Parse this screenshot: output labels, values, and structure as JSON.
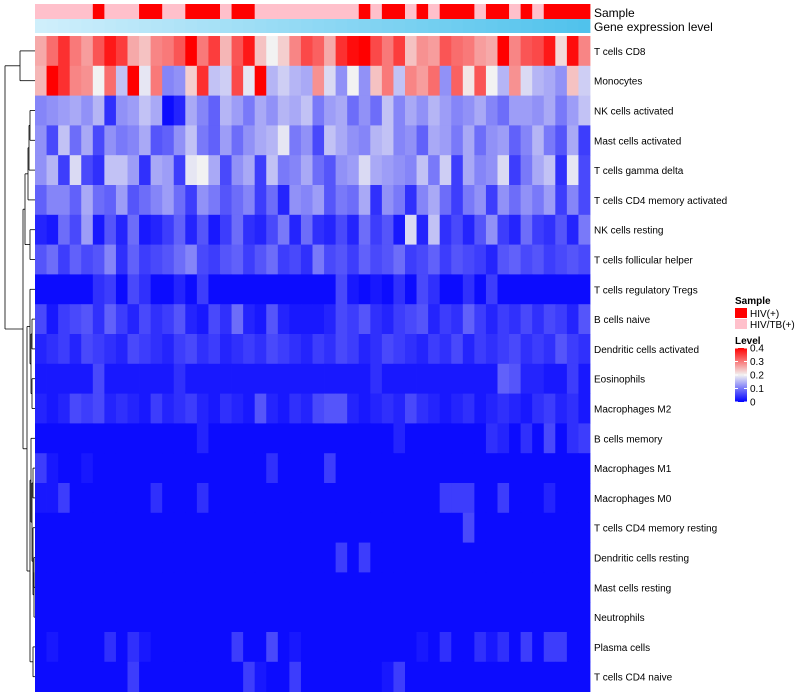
{
  "chart_data": {
    "type": "heatmap",
    "title": "",
    "annotations": {
      "sample_label": "Sample",
      "expression_label": "Gene expression level",
      "sample_row": [
        "HIV/TB(+)",
        "HIV/TB(+)",
        "HIV/TB(+)",
        "HIV/TB(+)",
        "HIV/TB(+)",
        "HIV(+)",
        "HIV/TB(+)",
        "HIV/TB(+)",
        "HIV/TB(+)",
        "HIV(+)",
        "HIV(+)",
        "HIV/TB(+)",
        "HIV/TB(+)",
        "HIV(+)",
        "HIV(+)",
        "HIV(+)",
        "HIV/TB(+)",
        "HIV(+)",
        "HIV(+)",
        "HIV/TB(+)",
        "HIV/TB(+)",
        "HIV/TB(+)",
        "HIV/TB(+)",
        "HIV/TB(+)",
        "HIV/TB(+)",
        "HIV/TB(+)",
        "HIV/TB(+)",
        "HIV/TB(+)",
        "HIV(+)",
        "HIV/TB(+)",
        "HIV(+)",
        "HIV(+)",
        "HIV/TB(+)",
        "HIV(+)",
        "HIV/TB(+)",
        "HIV(+)",
        "HIV(+)",
        "HIV(+)",
        "HIV/TB(+)",
        "HIV(+)",
        "HIV(+)",
        "HIV/TB(+)",
        "HIV(+)",
        "HIV/TB(+)",
        "HIV(+)",
        "HIV(+)",
        "HIV(+)",
        "HIV(+)"
      ],
      "expression_row": [
        0.05,
        0.07,
        0.09,
        0.11,
        0.13,
        0.15,
        0.17,
        0.19,
        0.21,
        0.23,
        0.25,
        0.27,
        0.29,
        0.31,
        0.33,
        0.35,
        0.37,
        0.39,
        0.41,
        0.43,
        0.45,
        0.47,
        0.49,
        0.51,
        0.53,
        0.55,
        0.57,
        0.59,
        0.61,
        0.63,
        0.65,
        0.67,
        0.69,
        0.71,
        0.73,
        0.75,
        0.77,
        0.79,
        0.81,
        0.83,
        0.85,
        0.87,
        0.89,
        0.91,
        0.93,
        0.95,
        0.97,
        0.99
      ]
    },
    "rows": [
      "T cells CD8",
      "Monocytes",
      "NK cells activated",
      "Mast cells activated",
      "T cells gamma delta",
      "T cells CD4 memory activated",
      "NK cells resting",
      "T cells follicular helper",
      "T cells regulatory  Tregs",
      "B cells naive",
      "Dendritic cells activated",
      "Eosinophils",
      "Macrophages M2",
      "B cells memory",
      "Macrophages M1",
      "Macrophages M0",
      "T cells CD4 memory resting",
      "Dendritic cells resting",
      "Mast cells resting",
      "Neutrophils",
      "Plasma cells",
      "T cells CD4 naive"
    ],
    "values": [
      [
        0.26,
        0.31,
        0.36,
        0.3,
        0.27,
        0.33,
        0.38,
        0.35,
        0.26,
        0.24,
        0.29,
        0.3,
        0.33,
        0.4,
        0.3,
        0.35,
        0.25,
        0.33,
        0.38,
        0.24,
        0.2,
        0.23,
        0.29,
        0.34,
        0.32,
        0.26,
        0.36,
        0.39,
        0.4,
        0.34,
        0.3,
        0.35,
        0.24,
        0.28,
        0.27,
        0.33,
        0.31,
        0.3,
        0.27,
        0.26,
        0.4,
        0.29,
        0.33,
        0.34,
        0.38,
        0.22,
        0.39,
        0.29
      ],
      [
        0.25,
        0.4,
        0.36,
        0.29,
        0.28,
        0.2,
        0.31,
        0.16,
        0.4,
        0.19,
        0.3,
        0.11,
        0.12,
        0.23,
        0.36,
        0.16,
        0.17,
        0.34,
        0.19,
        0.4,
        0.15,
        0.17,
        0.15,
        0.14,
        0.28,
        0.18,
        0.12,
        0.2,
        0.12,
        0.24,
        0.3,
        0.16,
        0.29,
        0.27,
        0.31,
        0.12,
        0.32,
        0.21,
        0.33,
        0.2,
        0.15,
        0.28,
        0.18,
        0.15,
        0.14,
        0.12,
        0.24,
        0.17
      ],
      [
        0.11,
        0.12,
        0.13,
        0.14,
        0.12,
        0.15,
        0.04,
        0.12,
        0.13,
        0.16,
        0.14,
        0.01,
        0.03,
        0.14,
        0.11,
        0.08,
        0.15,
        0.13,
        0.1,
        0.14,
        0.12,
        0.15,
        0.14,
        0.16,
        0.1,
        0.13,
        0.14,
        0.09,
        0.12,
        0.09,
        0.16,
        0.11,
        0.14,
        0.12,
        0.15,
        0.13,
        0.11,
        0.12,
        0.14,
        0.11,
        0.09,
        0.13,
        0.13,
        0.12,
        0.14,
        0.1,
        0.13,
        0.16
      ],
      [
        0.12,
        0.06,
        0.16,
        0.09,
        0.14,
        0.06,
        0.12,
        0.1,
        0.11,
        0.14,
        0.07,
        0.08,
        0.12,
        0.16,
        0.1,
        0.08,
        0.13,
        0.09,
        0.12,
        0.14,
        0.15,
        0.19,
        0.1,
        0.12,
        0.06,
        0.16,
        0.14,
        0.12,
        0.11,
        0.15,
        0.16,
        0.11,
        0.12,
        0.08,
        0.14,
        0.13,
        0.1,
        0.14,
        0.09,
        0.12,
        0.13,
        0.08,
        0.11,
        0.15,
        0.1,
        0.07,
        0.14,
        0.05
      ],
      [
        0.12,
        0.15,
        0.05,
        0.18,
        0.06,
        0.04,
        0.16,
        0.16,
        0.13,
        0.04,
        0.14,
        0.13,
        0.05,
        0.19,
        0.2,
        0.14,
        0.06,
        0.12,
        0.14,
        0.05,
        0.16,
        0.1,
        0.11,
        0.14,
        0.09,
        0.07,
        0.12,
        0.13,
        0.18,
        0.14,
        0.13,
        0.12,
        0.11,
        0.16,
        0.1,
        0.17,
        0.05,
        0.14,
        0.11,
        0.12,
        0.18,
        0.05,
        0.1,
        0.14,
        0.16,
        0.04,
        0.19,
        0.06
      ],
      [
        0.08,
        0.11,
        0.11,
        0.08,
        0.14,
        0.09,
        0.08,
        0.13,
        0.07,
        0.09,
        0.11,
        0.13,
        0.09,
        0.05,
        0.12,
        0.1,
        0.07,
        0.09,
        0.11,
        0.05,
        0.09,
        0.03,
        0.12,
        0.11,
        0.13,
        0.07,
        0.1,
        0.09,
        0.14,
        0.04,
        0.12,
        0.1,
        0.04,
        0.11,
        0.14,
        0.09,
        0.05,
        0.1,
        0.12,
        0.05,
        0.12,
        0.09,
        0.12,
        0.1,
        0.13,
        0.05,
        0.11,
        0.06
      ],
      [
        0.03,
        0.02,
        0.09,
        0.06,
        0.13,
        0.02,
        0.07,
        0.03,
        0.09,
        0.02,
        0.03,
        0.05,
        0.08,
        0.03,
        0.07,
        0.02,
        0.05,
        0.09,
        0.04,
        0.03,
        0.06,
        0.1,
        0.03,
        0.09,
        0.04,
        0.03,
        0.06,
        0.03,
        0.09,
        0.05,
        0.07,
        0.02,
        0.18,
        0.03,
        0.16,
        0.04,
        0.06,
        0.03,
        0.07,
        0.12,
        0.05,
        0.03,
        0.09,
        0.05,
        0.04,
        0.07,
        0.03,
        0.1
      ],
      [
        0.07,
        0.09,
        0.05,
        0.08,
        0.06,
        0.07,
        0.11,
        0.04,
        0.08,
        0.05,
        0.06,
        0.07,
        0.09,
        0.11,
        0.06,
        0.05,
        0.07,
        0.08,
        0.05,
        0.07,
        0.09,
        0.05,
        0.06,
        0.04,
        0.1,
        0.06,
        0.07,
        0.05,
        0.08,
        0.06,
        0.07,
        0.09,
        0.05,
        0.06,
        0.08,
        0.05,
        0.07,
        0.06,
        0.05,
        0.03,
        0.07,
        0.08,
        0.06,
        0.07,
        0.05,
        0.06,
        0.07,
        0.06
      ],
      [
        0.01,
        0.01,
        0.01,
        0.01,
        0.01,
        0.04,
        0.05,
        0.01,
        0.06,
        0.04,
        0.01,
        0.01,
        0.03,
        0.01,
        0.05,
        0.01,
        0.01,
        0.01,
        0.01,
        0.01,
        0.01,
        0.01,
        0.01,
        0.01,
        0.01,
        0.01,
        0.06,
        0.02,
        0.01,
        0.02,
        0.01,
        0.04,
        0.01,
        0.06,
        0.04,
        0.01,
        0.01,
        0.04,
        0.01,
        0.05,
        0.01,
        0.01,
        0.01,
        0.01,
        0.01,
        0.01,
        0.01,
        0.01
      ],
      [
        0.06,
        0.02,
        0.05,
        0.06,
        0.07,
        0.04,
        0.08,
        0.05,
        0.03,
        0.06,
        0.04,
        0.05,
        0.07,
        0.03,
        0.02,
        0.06,
        0.04,
        0.09,
        0.03,
        0.02,
        0.07,
        0.03,
        0.02,
        0.02,
        0.02,
        0.03,
        0.06,
        0.05,
        0.07,
        0.04,
        0.03,
        0.05,
        0.06,
        0.07,
        0.03,
        0.05,
        0.04,
        0.08,
        0.05,
        0.03,
        0.05,
        0.04,
        0.06,
        0.04,
        0.06,
        0.05,
        0.03,
        0.07
      ],
      [
        0.03,
        0.04,
        0.05,
        0.03,
        0.06,
        0.05,
        0.04,
        0.03,
        0.06,
        0.05,
        0.04,
        0.03,
        0.05,
        0.06,
        0.04,
        0.05,
        0.03,
        0.04,
        0.05,
        0.04,
        0.06,
        0.05,
        0.04,
        0.03,
        0.05,
        0.04,
        0.06,
        0.05,
        0.03,
        0.04,
        0.06,
        0.05,
        0.04,
        0.03,
        0.05,
        0.04,
        0.06,
        0.03,
        0.05,
        0.04,
        0.05,
        0.06,
        0.04,
        0.05,
        0.04,
        0.07,
        0.05,
        0.04
      ],
      [
        0.02,
        0.02,
        0.02,
        0.02,
        0.02,
        0.06,
        0.02,
        0.02,
        0.02,
        0.02,
        0.02,
        0.02,
        0.04,
        0.02,
        0.02,
        0.02,
        0.02,
        0.02,
        0.02,
        0.02,
        0.02,
        0.02,
        0.02,
        0.02,
        0.02,
        0.02,
        0.02,
        0.02,
        0.02,
        0.04,
        0.02,
        0.02,
        0.02,
        0.02,
        0.02,
        0.02,
        0.02,
        0.02,
        0.02,
        0.02,
        0.08,
        0.07,
        0.03,
        0.03,
        0.02,
        0.02,
        0.05,
        0.02
      ],
      [
        0.03,
        0.02,
        0.03,
        0.06,
        0.05,
        0.06,
        0.03,
        0.04,
        0.03,
        0.02,
        0.05,
        0.03,
        0.04,
        0.05,
        0.03,
        0.02,
        0.04,
        0.03,
        0.02,
        0.07,
        0.03,
        0.02,
        0.04,
        0.03,
        0.06,
        0.07,
        0.07,
        0.03,
        0.02,
        0.03,
        0.04,
        0.03,
        0.06,
        0.04,
        0.03,
        0.02,
        0.03,
        0.04,
        0.02,
        0.03,
        0.04,
        0.03,
        0.02,
        0.04,
        0.05,
        0.03,
        0.04,
        0.02
      ],
      [
        0.01,
        0.01,
        0.01,
        0.01,
        0.01,
        0.01,
        0.01,
        0.01,
        0.01,
        0.01,
        0.01,
        0.01,
        0.01,
        0.01,
        0.03,
        0.01,
        0.01,
        0.01,
        0.01,
        0.01,
        0.01,
        0.01,
        0.01,
        0.01,
        0.01,
        0.01,
        0.01,
        0.01,
        0.01,
        0.01,
        0.01,
        0.03,
        0.01,
        0.01,
        0.01,
        0.01,
        0.01,
        0.01,
        0.01,
        0.04,
        0.03,
        0.01,
        0.04,
        0.01,
        0.06,
        0.01,
        0.04,
        0.05
      ],
      [
        0.05,
        0.02,
        0.01,
        0.01,
        0.02,
        0.01,
        0.01,
        0.01,
        0.01,
        0.01,
        0.01,
        0.01,
        0.01,
        0.01,
        0.01,
        0.01,
        0.01,
        0.01,
        0.01,
        0.01,
        0.04,
        0.01,
        0.01,
        0.01,
        0.01,
        0.05,
        0.01,
        0.01,
        0.01,
        0.01,
        0.01,
        0.01,
        0.01,
        0.01,
        0.01,
        0.01,
        0.01,
        0.01,
        0.01,
        0.01,
        0.01,
        0.01,
        0.01,
        0.01,
        0.01,
        0.01,
        0.01,
        0.01
      ],
      [
        0.02,
        0.02,
        0.05,
        0.01,
        0.01,
        0.01,
        0.01,
        0.01,
        0.01,
        0.01,
        0.04,
        0.01,
        0.01,
        0.01,
        0.04,
        0.01,
        0.01,
        0.01,
        0.01,
        0.01,
        0.01,
        0.01,
        0.01,
        0.01,
        0.01,
        0.01,
        0.01,
        0.01,
        0.01,
        0.01,
        0.01,
        0.01,
        0.01,
        0.01,
        0.01,
        0.05,
        0.05,
        0.05,
        0.01,
        0.01,
        0.05,
        0.01,
        0.01,
        0.01,
        0.03,
        0.01,
        0.01,
        0.01
      ],
      [
        0.01,
        0.01,
        0.01,
        0.01,
        0.01,
        0.01,
        0.01,
        0.01,
        0.01,
        0.01,
        0.01,
        0.01,
        0.01,
        0.01,
        0.01,
        0.01,
        0.01,
        0.01,
        0.01,
        0.01,
        0.01,
        0.01,
        0.01,
        0.01,
        0.01,
        0.01,
        0.01,
        0.01,
        0.01,
        0.01,
        0.01,
        0.01,
        0.01,
        0.01,
        0.01,
        0.01,
        0.01,
        0.06,
        0.01,
        0.01,
        0.01,
        0.01,
        0.01,
        0.01,
        0.01,
        0.01,
        0.01,
        0.01
      ],
      [
        0.01,
        0.01,
        0.01,
        0.01,
        0.01,
        0.01,
        0.01,
        0.01,
        0.01,
        0.01,
        0.01,
        0.01,
        0.01,
        0.01,
        0.01,
        0.01,
        0.01,
        0.01,
        0.01,
        0.01,
        0.01,
        0.01,
        0.01,
        0.01,
        0.01,
        0.01,
        0.05,
        0.01,
        0.05,
        0.01,
        0.01,
        0.01,
        0.01,
        0.01,
        0.01,
        0.01,
        0.01,
        0.01,
        0.01,
        0.01,
        0.01,
        0.01,
        0.01,
        0.01,
        0.01,
        0.01,
        0.01,
        0.01
      ],
      [
        0.01,
        0.01,
        0.01,
        0.01,
        0.01,
        0.01,
        0.01,
        0.01,
        0.01,
        0.01,
        0.01,
        0.01,
        0.01,
        0.01,
        0.01,
        0.01,
        0.01,
        0.01,
        0.01,
        0.01,
        0.01,
        0.01,
        0.01,
        0.01,
        0.01,
        0.01,
        0.01,
        0.01,
        0.01,
        0.01,
        0.01,
        0.01,
        0.01,
        0.01,
        0.01,
        0.01,
        0.01,
        0.01,
        0.01,
        0.01,
        0.01,
        0.01,
        0.01,
        0.01,
        0.01,
        0.01,
        0.01,
        0.01
      ],
      [
        0.01,
        0.01,
        0.01,
        0.01,
        0.01,
        0.01,
        0.01,
        0.01,
        0.01,
        0.01,
        0.01,
        0.01,
        0.01,
        0.01,
        0.01,
        0.01,
        0.01,
        0.01,
        0.01,
        0.01,
        0.01,
        0.01,
        0.01,
        0.01,
        0.01,
        0.01,
        0.01,
        0.01,
        0.01,
        0.01,
        0.01,
        0.01,
        0.01,
        0.01,
        0.01,
        0.01,
        0.01,
        0.01,
        0.01,
        0.01,
        0.01,
        0.01,
        0.01,
        0.01,
        0.01,
        0.01,
        0.01,
        0.01
      ],
      [
        0.01,
        0.02,
        0.01,
        0.01,
        0.01,
        0.01,
        0.04,
        0.01,
        0.04,
        0.02,
        0.01,
        0.01,
        0.01,
        0.01,
        0.01,
        0.01,
        0.01,
        0.05,
        0.01,
        0.01,
        0.06,
        0.01,
        0.02,
        0.01,
        0.01,
        0.01,
        0.01,
        0.01,
        0.01,
        0.01,
        0.01,
        0.01,
        0.01,
        0.02,
        0.01,
        0.04,
        0.01,
        0.01,
        0.04,
        0.02,
        0.04,
        0.01,
        0.05,
        0.01,
        0.05,
        0.05,
        0.01,
        0.01
      ],
      [
        0.01,
        0.01,
        0.01,
        0.01,
        0.01,
        0.01,
        0.01,
        0.01,
        0.05,
        0.01,
        0.01,
        0.01,
        0.01,
        0.01,
        0.01,
        0.01,
        0.01,
        0.01,
        0.05,
        0.02,
        0.01,
        0.01,
        0.05,
        0.01,
        0.01,
        0.01,
        0.01,
        0.01,
        0.01,
        0.01,
        0.02,
        0.05,
        0.01,
        0.01,
        0.01,
        0.01,
        0.01,
        0.01,
        0.01,
        0.01,
        0.01,
        0.01,
        0.01,
        0.01,
        0.01,
        0.01,
        0.01,
        0.01
      ]
    ],
    "color_scale": {
      "min": 0,
      "max": 0.4,
      "stops": [
        {
          "value": 0,
          "color": "#0000FF"
        },
        {
          "value": 0.2,
          "color": "#F2F2F2"
        },
        {
          "value": 0.4,
          "color": "#FF0000"
        }
      ]
    },
    "legend": {
      "position": "right",
      "sample_title": "Sample",
      "sample_entries": [
        {
          "label": "HIV(+)",
          "color": "#FF0000"
        },
        {
          "label": "HIV/TB(+)",
          "color": "#FFC0CB"
        }
      ],
      "level_title": "Level",
      "level_ticks": [
        "0.4",
        "0.3",
        "0.2",
        "0.1",
        "0"
      ],
      "level_tick_values": [
        0.4,
        0.3,
        0.2,
        0.1,
        0
      ]
    },
    "expression_colors": {
      "low": "#D6F1FC",
      "high": "#4FC2EC"
    },
    "dendrogram_color": "#000000"
  }
}
